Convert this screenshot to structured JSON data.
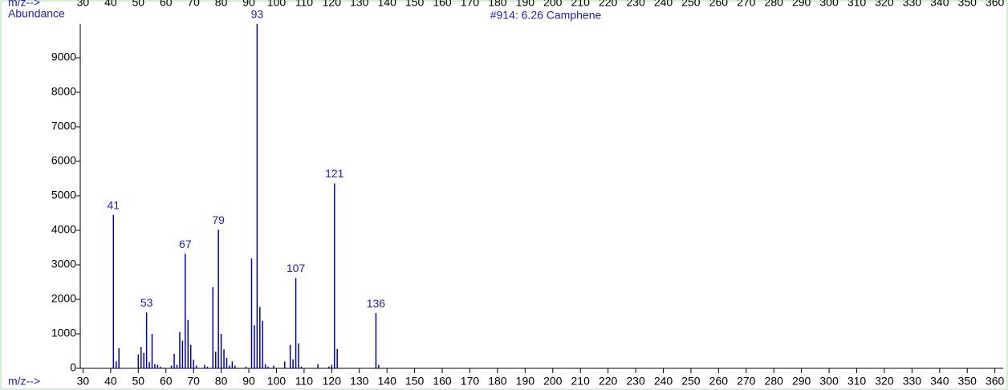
{
  "chart_data": {
    "type": "bar",
    "title": "#914: 6.26 Camphene",
    "ylabel": "Abundance",
    "xlabel": "m/z-->",
    "color": "#0000c8",
    "x": [
      41,
      42,
      43,
      50,
      51,
      52,
      53,
      54,
      55,
      56,
      57,
      58,
      62,
      63,
      64,
      65,
      66,
      67,
      68,
      69,
      70,
      71,
      74,
      75,
      77,
      78,
      79,
      80,
      81,
      82,
      83,
      84,
      85,
      89,
      91,
      92,
      93,
      94,
      95,
      96,
      97,
      99,
      103,
      105,
      106,
      107,
      108,
      109,
      115,
      119,
      120,
      121,
      122,
      136,
      137
    ],
    "values": [
      4450,
      200,
      580,
      400,
      620,
      450,
      1620,
      180,
      1000,
      120,
      100,
      50,
      80,
      420,
      100,
      1050,
      800,
      3320,
      1400,
      680,
      250,
      80,
      100,
      50,
      2350,
      480,
      4020,
      1000,
      550,
      300,
      80,
      200,
      80,
      50,
      3180,
      1250,
      9980,
      1780,
      1380,
      120,
      50,
      80,
      200,
      680,
      260,
      2620,
      720,
      50,
      120,
      50,
      100,
      5360,
      560,
      1600,
      100
    ],
    "x_labels": [
      "41",
      null,
      null,
      null,
      null,
      null,
      "53",
      null,
      null,
      null,
      null,
      null,
      null,
      null,
      null,
      null,
      null,
      "67",
      null,
      null,
      null,
      null,
      null,
      null,
      null,
      null,
      "79",
      null,
      null,
      null,
      null,
      null,
      null,
      null,
      null,
      null,
      "93",
      null,
      null,
      null,
      null,
      null,
      null,
      null,
      null,
      "107",
      null,
      null,
      null,
      null,
      null,
      "121",
      null,
      "136",
      null
    ],
    "xlim": [
      29,
      363
    ],
    "xticks": [
      30,
      40,
      50,
      60,
      70,
      80,
      90,
      100,
      110,
      120,
      130,
      140,
      150,
      160,
      170,
      180,
      190,
      200,
      210,
      220,
      230,
      240,
      250,
      260,
      270,
      280,
      290,
      300,
      310,
      320,
      330,
      340,
      350,
      360
    ],
    "ylim": [
      0,
      10000
    ],
    "yticks": [
      0,
      1000,
      2000,
      3000,
      4000,
      5000,
      6000,
      7000,
      8000,
      9000
    ]
  }
}
